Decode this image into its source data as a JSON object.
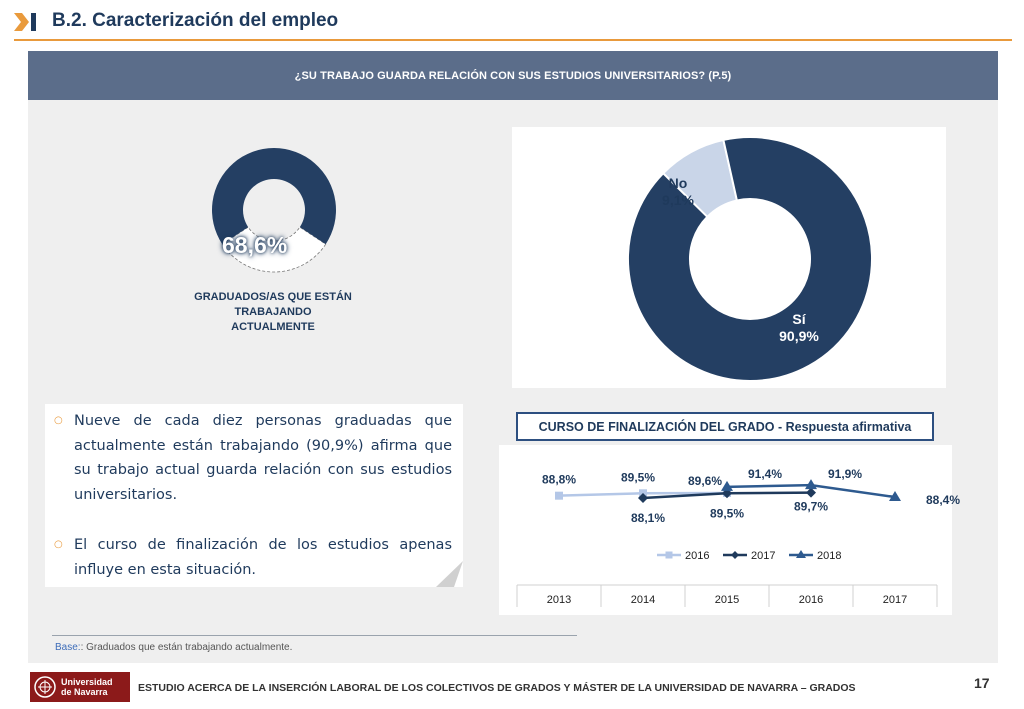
{
  "header": {
    "title": "B.2. Caracterización del empleo"
  },
  "question": "¿SU TRABAJO GUARDA RELACIÓN CON SUS ESTUDIOS UNIVERSITARIOS?  (P.5)",
  "employment": {
    "value": "68,6%",
    "percent": 68.6,
    "caption_lines": [
      "GRADUADOS/AS QUE ESTÁN",
      "TRABAJANDO",
      "ACTUALMENTE"
    ]
  },
  "chart_data": [
    {
      "type": "pie",
      "slices": [
        {
          "label": "Sí",
          "value": 90.9,
          "value_label": "90,9%",
          "color": "#243f63"
        },
        {
          "label": "No",
          "value": 9.1,
          "value_label": "9,1%",
          "color": "#c9d5e8"
        }
      ]
    },
    {
      "type": "line",
      "title": "CURSO DE FINALIZACIÓN DEL GRADO - Respuesta afirmativa",
      "x": [
        "2013",
        "2014",
        "2015",
        "2016",
        "2017"
      ],
      "series": [
        {
          "name": "2016",
          "values": [
            88.8,
            89.5,
            89.6,
            null,
            null
          ],
          "labels": [
            "88,8%",
            "89,5%",
            "89,6%",
            null,
            null
          ],
          "color": "#b4c7e7",
          "marker": "square"
        },
        {
          "name": "2017",
          "values": [
            null,
            88.1,
            89.5,
            89.7,
            null
          ],
          "labels": [
            null,
            "88,1%",
            "89,5%",
            "89,7%",
            null
          ],
          "color": "#1f3a5c",
          "marker": "diamond"
        },
        {
          "name": "2018",
          "values": [
            null,
            null,
            91.4,
            91.9,
            88.4
          ],
          "labels": [
            null,
            null,
            "91,4%",
            "91,9%",
            "88,4%"
          ],
          "color": "#2e5a8f",
          "marker": "triangle"
        }
      ],
      "legend_position": "bottom"
    }
  ],
  "bullets": [
    "Nueve de cada diez personas graduadas que actualmente están trabajando (90,9%) afirma que su trabajo actual guarda relación con sus estudios universitarios.",
    "El curso de finalización de los estudios apenas influye en esta situación."
  ],
  "footnote": {
    "label": "Base:",
    "text": ": Graduados que están trabajando actualmente."
  },
  "footer": {
    "university_lines": [
      "Universidad",
      "de Navarra"
    ],
    "text": "ESTUDIO ACERCA DE LA INSERCIÓN LABORAL DE LOS COLECTIVOS DE GRADOS Y MÁSTER DE LA UNIVERSIDAD DE NAVARRA – GRADOS",
    "page": "17"
  },
  "colors": {
    "accent": "#e99a3c",
    "navy": "#1f3a5c",
    "question_bar": "#5b6d8a",
    "panel": "#efefef"
  }
}
